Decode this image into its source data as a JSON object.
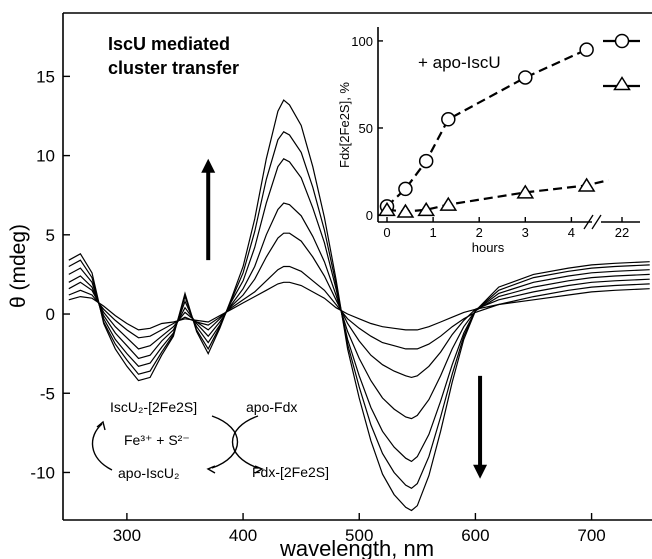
{
  "chart_data": [
    {
      "type": "line",
      "title": "IscU mediated cluster transfer",
      "title_lines": [
        "IscU mediated",
        "cluster transfer"
      ],
      "xlabel": "wavelength, nm",
      "ylabel": "θ (mdeg)",
      "xlim": [
        245,
        752
      ],
      "ylim": [
        -13,
        19
      ],
      "xticks": [
        300,
        400,
        500,
        600,
        700
      ],
      "yticks": [
        -10,
        -5,
        0,
        5,
        10,
        15
      ],
      "grid": false,
      "x": [
        250,
        260,
        270,
        280,
        290,
        300,
        310,
        320,
        330,
        340,
        350,
        360,
        370,
        380,
        390,
        400,
        410,
        420,
        430,
        435,
        440,
        450,
        460,
        470,
        480,
        490,
        500,
        510,
        520,
        530,
        540,
        545,
        550,
        560,
        570,
        580,
        590,
        600,
        620,
        650,
        680,
        700,
        720,
        750
      ],
      "series": [
        {
          "values": [
            0.9,
            1.1,
            1.0,
            0.5,
            -0.1,
            -0.6,
            -1.0,
            -0.9,
            -0.6,
            -0.5,
            -0.3,
            -0.4,
            -0.5,
            -0.1,
            0.3,
            0.7,
            1.1,
            1.5,
            1.9,
            2.0,
            2.0,
            1.8,
            1.4,
            1.0,
            0.4,
            0.0,
            -0.3,
            -0.6,
            -0.8,
            -0.9,
            -1.0,
            -1.0,
            -1.0,
            -0.8,
            -0.5,
            -0.2,
            0.1,
            0.3,
            0.6,
            0.9,
            1.2,
            1.4,
            1.5,
            1.6
          ]
        },
        {
          "values": [
            1.2,
            1.5,
            1.2,
            0.3,
            -0.4,
            -1.0,
            -1.5,
            -1.4,
            -1.0,
            -0.6,
            -0.2,
            -0.5,
            -0.7,
            -0.2,
            0.4,
            0.9,
            1.4,
            2.1,
            2.8,
            3.0,
            3.0,
            2.7,
            2.1,
            1.5,
            0.6,
            -0.3,
            -0.9,
            -1.4,
            -1.8,
            -2.0,
            -2.2,
            -2.2,
            -2.2,
            -1.9,
            -1.4,
            -0.8,
            -0.3,
            0.1,
            0.6,
            1.1,
            1.5,
            1.7,
            1.8,
            1.9
          ]
        },
        {
          "values": [
            1.6,
            2.0,
            1.5,
            0.1,
            -0.8,
            -1.5,
            -2.2,
            -2.0,
            -1.4,
            -0.8,
            0.1,
            -0.5,
            -1.0,
            -0.3,
            0.5,
            1.2,
            2.2,
            3.6,
            4.8,
            5.1,
            5.1,
            4.6,
            3.6,
            2.4,
            0.9,
            -0.6,
            -1.7,
            -2.6,
            -3.2,
            -3.6,
            -3.9,
            -4.0,
            -3.9,
            -3.3,
            -2.4,
            -1.3,
            -0.4,
            0.3,
            0.9,
            1.4,
            1.8,
            2.0,
            2.1,
            2.2
          ]
        },
        {
          "values": [
            2.0,
            2.4,
            1.7,
            -0.1,
            -1.2,
            -2.0,
            -2.8,
            -2.6,
            -1.7,
            -1.0,
            0.4,
            -0.6,
            -1.4,
            -0.5,
            0.6,
            1.6,
            3.0,
            5.0,
            6.6,
            7.0,
            6.9,
            6.2,
            4.9,
            3.3,
            1.2,
            -1.1,
            -2.8,
            -4.2,
            -5.3,
            -6.0,
            -6.5,
            -6.6,
            -6.4,
            -5.4,
            -3.9,
            -2.2,
            -0.8,
            0.2,
            1.1,
            1.7,
            2.1,
            2.3,
            2.4,
            2.5
          ]
        },
        {
          "values": [
            2.5,
            2.9,
            2.0,
            -0.3,
            -1.6,
            -2.5,
            -3.3,
            -3.1,
            -2.1,
            -1.2,
            0.8,
            -0.8,
            -1.8,
            -0.7,
            0.8,
            2.1,
            4.2,
            7.0,
            9.3,
            9.8,
            9.6,
            8.6,
            6.7,
            4.5,
            1.6,
            -1.6,
            -3.9,
            -5.9,
            -7.4,
            -8.4,
            -9.1,
            -9.3,
            -9.0,
            -7.6,
            -5.5,
            -3.2,
            -1.2,
            0.2,
            1.3,
            2.0,
            2.4,
            2.6,
            2.7,
            2.8
          ]
        },
        {
          "values": [
            3.0,
            3.4,
            2.3,
            -0.5,
            -1.9,
            -2.9,
            -3.8,
            -3.6,
            -2.4,
            -1.3,
            1.1,
            -1.0,
            -2.2,
            -0.8,
            0.9,
            2.6,
            5.2,
            8.5,
            11.0,
            11.5,
            11.3,
            10.2,
            8.0,
            5.3,
            1.9,
            -1.9,
            -4.6,
            -7.0,
            -8.8,
            -10.0,
            -10.8,
            -11.0,
            -10.7,
            -9.0,
            -6.5,
            -3.8,
            -1.4,
            0.2,
            1.5,
            2.3,
            2.7,
            2.9,
            3.0,
            3.1
          ]
        },
        {
          "values": [
            3.4,
            3.8,
            2.6,
            -0.6,
            -2.2,
            -3.3,
            -4.2,
            -4.0,
            -2.6,
            -1.4,
            1.3,
            -1.1,
            -2.5,
            -0.9,
            1.0,
            3.0,
            6.0,
            9.8,
            12.8,
            13.5,
            13.2,
            11.9,
            9.3,
            6.1,
            2.2,
            -2.2,
            -5.3,
            -8.0,
            -10.1,
            -11.4,
            -12.2,
            -12.4,
            -12.1,
            -10.2,
            -7.4,
            -4.3,
            -1.6,
            0.2,
            1.7,
            2.5,
            2.9,
            3.1,
            3.2,
            3.3
          ]
        }
      ],
      "annotations": {
        "up_arrow": {
          "x": 370,
          "from": 3.4,
          "to": 9.8
        },
        "down_arrow": {
          "x": 604,
          "from": -3.9,
          "to": -10.4
        }
      },
      "scheme": {
        "iscu_cluster": "IscU₂-[2Fe2S]",
        "apo_fdx": "apo-Fdx",
        "fe_s": "Fe³⁺ + S²⁻",
        "apo_iscu": "apo-IscU₂",
        "fdx_cluster": "Fdx-[2Fe2S]"
      }
    },
    {
      "type": "line",
      "title": "",
      "legend_text": "+ apo-IscU",
      "xlabel": "hours",
      "ylabel": "Fdx[2Fe2S], %",
      "xlim": [
        -0.3,
        23
      ],
      "ylim": [
        -4,
        108
      ],
      "xticks": [
        "0",
        "1",
        "2",
        "3",
        "4",
        "22"
      ],
      "yticks": [
        "0",
        "50",
        "100"
      ],
      "legend_position": "right",
      "series": [
        {
          "name": "",
          "marker": "circle",
          "x": [
            0,
            0.4,
            0.85,
            1.33,
            3.0,
            4.33
          ],
          "y": [
            5,
            15,
            31,
            55,
            79,
            95
          ]
        },
        {
          "name": "",
          "marker": "triangle",
          "x": [
            0,
            0.4,
            0.85,
            1.33,
            3.0,
            4.33
          ],
          "y": [
            3,
            2,
            3,
            6,
            13,
            17
          ]
        }
      ]
    }
  ]
}
